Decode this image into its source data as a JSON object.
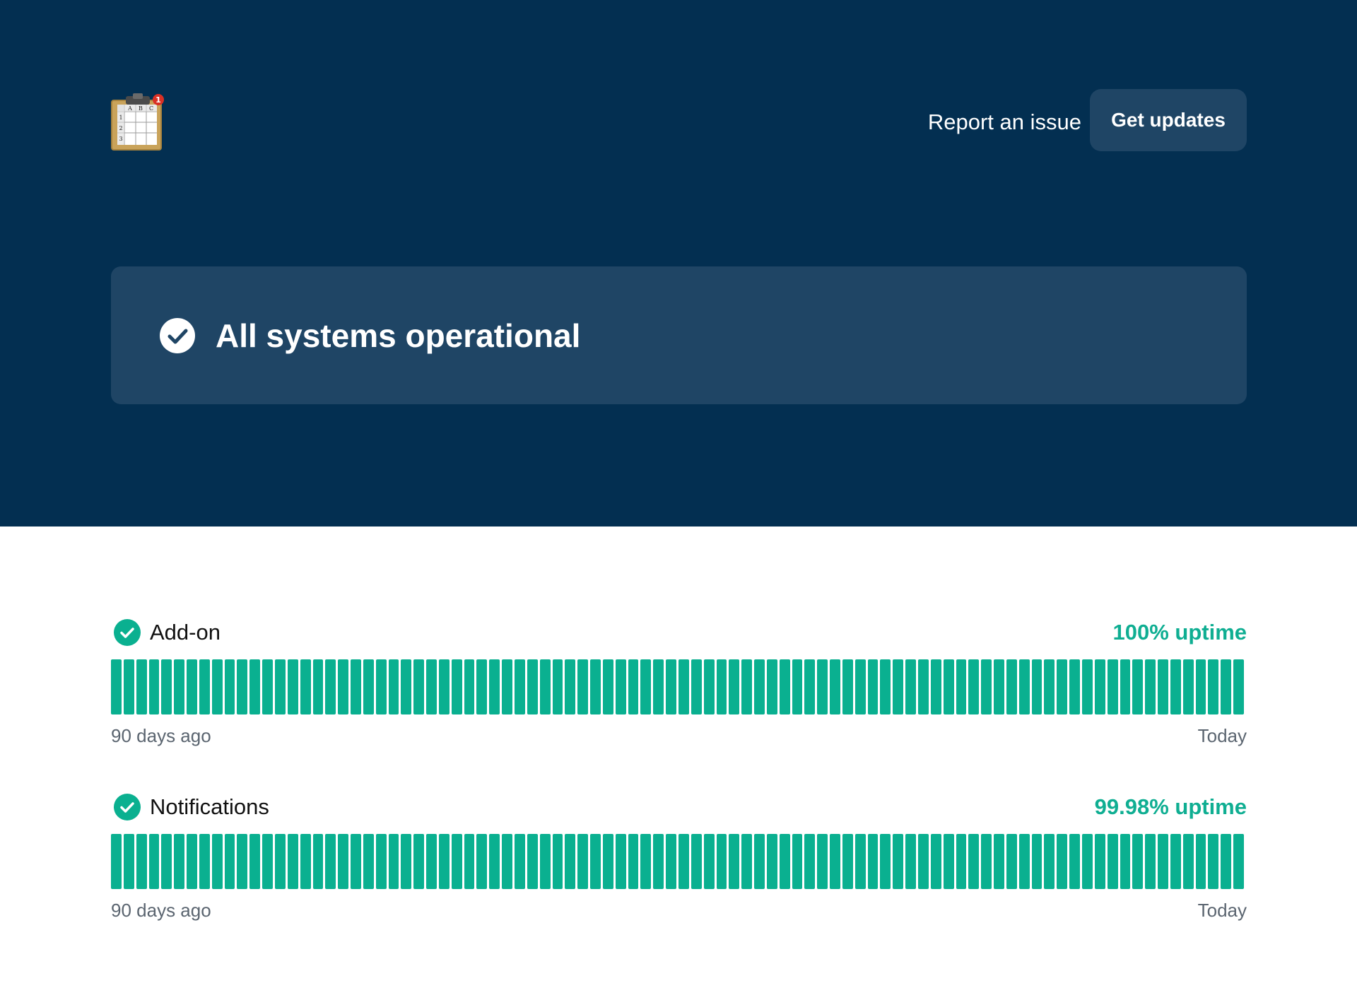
{
  "header": {
    "logo": "clipboard-spreadsheet-logo",
    "logo_lettering": [
      "A",
      "B",
      "C",
      "1",
      "2",
      "3",
      "1"
    ],
    "report_link": "Report an issue",
    "updates_button": "Get updates"
  },
  "status": {
    "title": "All systems operational",
    "icon": "check-circle-icon"
  },
  "colors": {
    "hero_background": "#032f51",
    "panel": "#1f4565",
    "operational": "#0ab090",
    "uptime_text": "#0fae92"
  },
  "components": [
    {
      "name": "Add-on",
      "uptime": "100% uptime",
      "status_icon": "check-circle-icon",
      "range_start": "90 days ago",
      "range_end": "Today",
      "daily_bars": 90,
      "all_days_status": "operational"
    },
    {
      "name": "Notifications",
      "uptime": "99.98% uptime",
      "status_icon": "check-circle-icon",
      "range_start": "90 days ago",
      "range_end": "Today",
      "daily_bars": 90,
      "all_days_status": "operational"
    }
  ]
}
